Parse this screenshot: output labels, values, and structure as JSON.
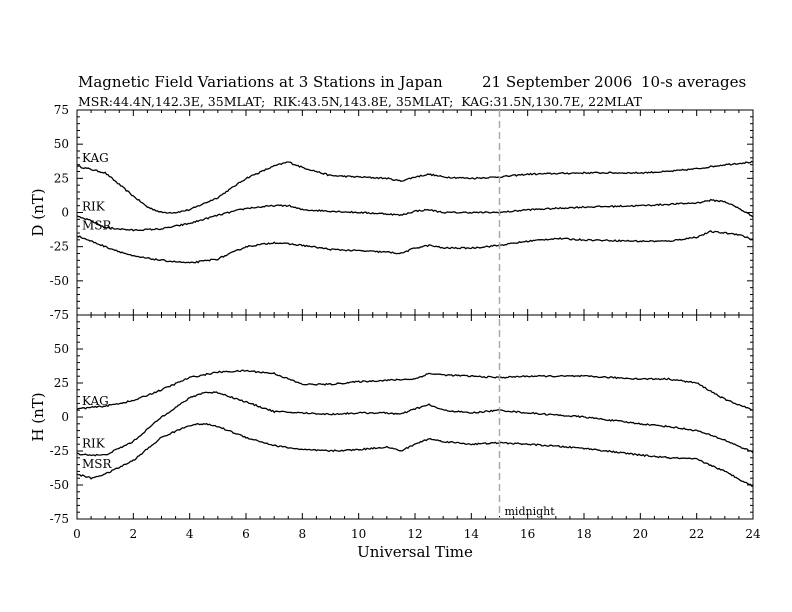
{
  "header": {
    "title": "Magnetic Field Variations at 3 Stations in Japan",
    "date": "21 September 2006",
    "averaging": "10-s averages",
    "stations_line": "MSR:44.4N,142.3E, 35MLAT;  RIK:43.5N,143.8E, 35MLAT;  KAG:31.5N,130.7E, 22MLAT"
  },
  "chart_data": [
    {
      "type": "line",
      "panel": "D",
      "ylabel": "D (nT)",
      "xlabel": "",
      "xlim": [
        0,
        24
      ],
      "ylim": [
        -75,
        75
      ],
      "yticks": [
        -75,
        -50,
        -25,
        0,
        25,
        50,
        75
      ],
      "grid": false,
      "series": [
        {
          "name": "KAG",
          "color": "#000000",
          "x": [
            0,
            1,
            2,
            2.5,
            3,
            3.5,
            4,
            5,
            6,
            7,
            7.5,
            8,
            9,
            10,
            11,
            11.5,
            12,
            12.5,
            13,
            14,
            15,
            16,
            18,
            20,
            21,
            22,
            23,
            24
          ],
          "y": [
            34,
            29,
            12,
            4,
            0,
            0,
            2,
            11,
            25,
            34,
            37,
            33,
            27,
            26,
            25,
            23,
            26,
            28,
            26,
            25,
            26,
            28,
            29,
            29,
            30,
            32,
            35,
            37
          ]
        },
        {
          "name": "RIK",
          "color": "#000000",
          "x": [
            0,
            0.5,
            1,
            2,
            3,
            4,
            5,
            6,
            7,
            7.5,
            8,
            9,
            10,
            11,
            11.5,
            12,
            12.5,
            13,
            14,
            15,
            16,
            18,
            20,
            21,
            22,
            22.5,
            23,
            23.5,
            24
          ],
          "y": [
            -3,
            -6,
            -11,
            -13,
            -12,
            -8,
            -2,
            3,
            5,
            5,
            2,
            1,
            0,
            -1,
            -2,
            1,
            2,
            0,
            0,
            0,
            2,
            4,
            5,
            6,
            7,
            9,
            8,
            3,
            -3
          ]
        },
        {
          "name": "MSR",
          "color": "#000000",
          "x": [
            0,
            1,
            2,
            3,
            4,
            5,
            6,
            7,
            8,
            9,
            10,
            11,
            11.5,
            12,
            12.5,
            13,
            14,
            15,
            16,
            17,
            18,
            20,
            21,
            22,
            22.5,
            23,
            23.5,
            24
          ],
          "y": [
            -17,
            -25,
            -32,
            -35,
            -37,
            -34,
            -25,
            -22,
            -24,
            -27,
            -28,
            -29,
            -30,
            -26,
            -24,
            -26,
            -26,
            -24,
            -21,
            -19,
            -20,
            -21,
            -21,
            -18,
            -14,
            -15,
            -16,
            -20
          ]
        }
      ]
    },
    {
      "type": "line",
      "panel": "H",
      "ylabel": "H (nT)",
      "xlabel": "Universal Time",
      "xlim": [
        0,
        24
      ],
      "ylim": [
        -75,
        75
      ],
      "yticks": [
        -75,
        -50,
        -25,
        0,
        25,
        50,
        75
      ],
      "xticks": [
        0,
        2,
        4,
        6,
        8,
        10,
        12,
        14,
        16,
        18,
        20,
        22,
        24
      ],
      "xtick_labels": [
        "0",
        "2",
        "4",
        "6",
        "8",
        "10",
        "12",
        "14",
        "16",
        "18",
        "20",
        "22",
        "24"
      ],
      "grid": false,
      "series": [
        {
          "name": "KAG",
          "color": "#000000",
          "x": [
            0,
            1,
            2,
            3,
            4,
            5,
            6,
            7,
            8,
            9,
            10,
            11,
            12,
            12.5,
            13,
            14,
            15,
            16,
            18,
            20,
            21,
            22,
            23,
            24
          ],
          "y": [
            6,
            8,
            12,
            20,
            29,
            33,
            34,
            32,
            24,
            24,
            26,
            27,
            28,
            32,
            31,
            30,
            29,
            30,
            30,
            28,
            28,
            25,
            13,
            5
          ]
        },
        {
          "name": "RIK",
          "color": "#000000",
          "x": [
            0,
            0.5,
            1,
            2,
            3,
            4,
            4.5,
            5,
            6,
            7,
            8,
            9,
            10,
            11,
            11.5,
            12,
            12.5,
            13,
            14,
            15,
            16,
            18,
            20,
            21,
            22,
            23,
            24
          ],
          "y": [
            -27,
            -28,
            -28,
            -18,
            0,
            14,
            18,
            18,
            11,
            4,
            3,
            2,
            3,
            3,
            2,
            6,
            9,
            5,
            3,
            5,
            3,
            0,
            -5,
            -7,
            -10,
            -17,
            -26
          ]
        },
        {
          "name": "MSR",
          "color": "#000000",
          "x": [
            0,
            0.5,
            1,
            2,
            3,
            4,
            4.5,
            5,
            6,
            7,
            8,
            9,
            10,
            11,
            11.5,
            12,
            12.5,
            13,
            14,
            15,
            16,
            18,
            20,
            21,
            22,
            23,
            24
          ],
          "y": [
            -42,
            -45,
            -42,
            -32,
            -15,
            -6,
            -5,
            -7,
            -15,
            -21,
            -24,
            -25,
            -24,
            -22,
            -25,
            -20,
            -16,
            -18,
            -20,
            -19,
            -20,
            -23,
            -28,
            -30,
            -31,
            -40,
            -51
          ]
        }
      ]
    }
  ],
  "annotations": {
    "midnight_label": "midnight",
    "midnight_ut": 15,
    "line_style": "dashed",
    "line_color": "#aaaaaa"
  }
}
